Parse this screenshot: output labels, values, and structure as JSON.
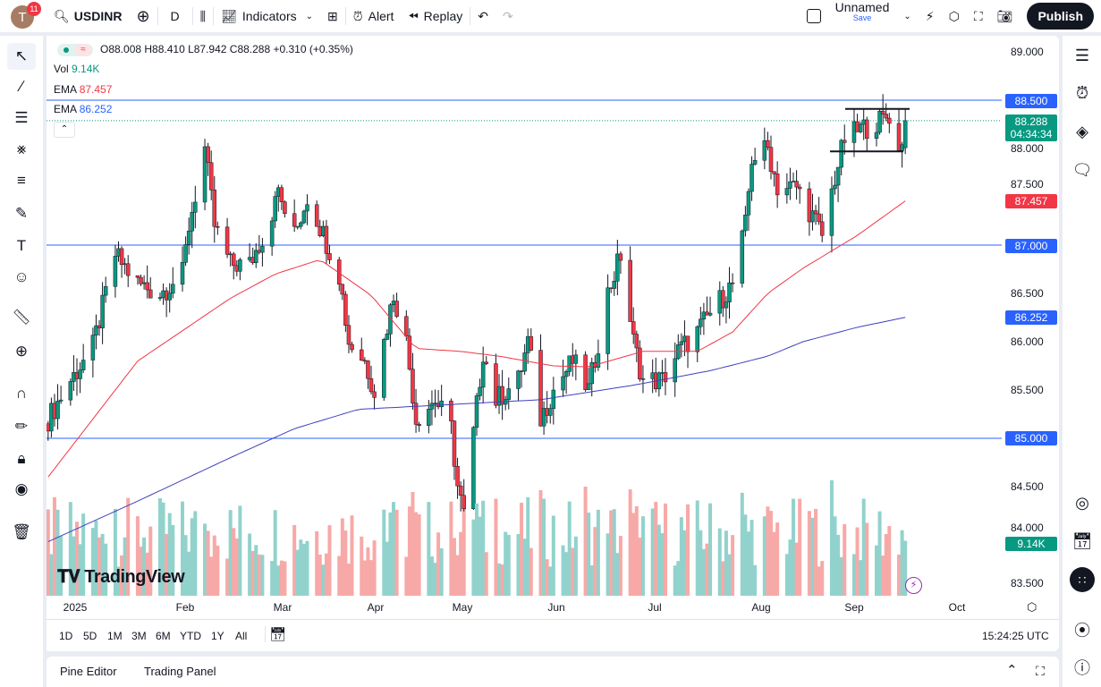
{
  "toolbar": {
    "avatar_letter": "T",
    "notifications": "11",
    "symbol": "USDINR",
    "interval": "D",
    "indicators": "Indicators",
    "alert": "Alert",
    "replay": "Replay",
    "layout_name": "Unnamed",
    "save": "Save",
    "publish": "Publish"
  },
  "legend": {
    "ohlc": "O88.008 H88.410 L87.942 C88.288 +0.310 (+0.35%)",
    "vol_label": "Vol",
    "vol_value": "9.14K",
    "ema1_label": "EMA",
    "ema1_value": "87.457",
    "ema2_label": "EMA",
    "ema2_value": "86.252"
  },
  "price_axis": {
    "ticks": [
      "89.000",
      "88.000",
      "87.500",
      "86.500",
      "86.000",
      "85.500",
      "84.500",
      "84.000",
      "83.500"
    ],
    "tags": {
      "level_885": "88.500",
      "last": "88.288",
      "countdown": "04:34:34",
      "ema1": "87.457",
      "level_87": "87.000",
      "ema2": "86.252",
      "level_85": "85.000",
      "volume": "9.14K"
    }
  },
  "time_axis": [
    "2025",
    "Feb",
    "Mar",
    "Apr",
    "May",
    "Jun",
    "Jul",
    "Aug",
    "Sep",
    "Oct"
  ],
  "ranges": [
    "1D",
    "5D",
    "1M",
    "3M",
    "6M",
    "YTD",
    "1Y",
    "All"
  ],
  "clock": "15:24:25 UTC",
  "bottom_tabs": [
    "Pine Editor",
    "Trading Panel"
  ],
  "watermark": "TradingView",
  "colors": {
    "up": "#089981",
    "down": "#f23645",
    "vol_up": "#92d2cc",
    "vol_down": "#f7a9a7",
    "ema_fast": "#f23645",
    "ema_slow": "#2962ff",
    "level": "#2962ff",
    "accent": "#2962ff"
  },
  "chart_data": {
    "type": "candlestick",
    "symbol": "USDINR",
    "interval": "D",
    "ylim": [
      83.5,
      89.0
    ],
    "grid": false,
    "horizontal_levels": [
      88.5,
      87.0,
      85.0
    ],
    "range_box": {
      "top": 88.41,
      "bottom": 87.97
    },
    "last": {
      "open": 88.008,
      "high": 88.41,
      "low": 87.942,
      "close": 88.288,
      "change": 0.31,
      "change_pct": 0.35,
      "volume": "9.14K"
    },
    "close_keypoints": [
      [
        "2024-12-23",
        85.2
      ],
      [
        "2024-12-30",
        85.6
      ],
      [
        "2025-01-06",
        85.95
      ],
      [
        "2025-01-13",
        86.9
      ],
      [
        "2025-01-20",
        86.6
      ],
      [
        "2025-01-27",
        86.5
      ],
      [
        "2025-02-03",
        86.7
      ],
      [
        "2025-02-05",
        87.2
      ],
      [
        "2025-02-10",
        88.0
      ],
      [
        "2025-02-13",
        87.2
      ],
      [
        "2025-02-18",
        86.8
      ],
      [
        "2025-02-24",
        86.8
      ],
      [
        "2025-03-03",
        87.3
      ],
      [
        "2025-03-04",
        87.6
      ],
      [
        "2025-03-10",
        87.1
      ],
      [
        "2025-03-14",
        87.5
      ],
      [
        "2025-03-18",
        87.2
      ],
      [
        "2025-03-24",
        86.7
      ],
      [
        "2025-03-27",
        86.0
      ],
      [
        "2025-04-01",
        85.8
      ],
      [
        "2025-04-04",
        85.5
      ],
      [
        "2025-04-10",
        86.5
      ],
      [
        "2025-04-14",
        86.0
      ],
      [
        "2025-04-17",
        85.2
      ],
      [
        "2025-04-23",
        85.4
      ],
      [
        "2025-04-28",
        85.1
      ],
      [
        "2025-04-30",
        84.5
      ],
      [
        "2025-05-02",
        84.2
      ],
      [
        "2025-05-08",
        85.9
      ],
      [
        "2025-05-12",
        85.4
      ],
      [
        "2025-05-19",
        85.6
      ],
      [
        "2025-05-22",
        86.0
      ],
      [
        "2025-05-26",
        85.2
      ],
      [
        "2025-05-30",
        85.5
      ],
      [
        "2025-06-05",
        85.8
      ],
      [
        "2025-06-10",
        85.5
      ],
      [
        "2025-06-16",
        86.5
      ],
      [
        "2025-06-20",
        86.9
      ],
      [
        "2025-06-24",
        86.0
      ],
      [
        "2025-06-27",
        85.6
      ],
      [
        "2025-07-03",
        85.6
      ],
      [
        "2025-07-08",
        85.9
      ],
      [
        "2025-07-14",
        86.1
      ],
      [
        "2025-07-18",
        86.3
      ],
      [
        "2025-07-25",
        86.6
      ],
      [
        "2025-07-29",
        87.2
      ],
      [
        "2025-07-31",
        87.9
      ],
      [
        "2025-08-05",
        88.0
      ],
      [
        "2025-08-08",
        87.6
      ],
      [
        "2025-08-14",
        87.6
      ],
      [
        "2025-08-19",
        87.3
      ],
      [
        "2025-08-22",
        87.1
      ],
      [
        "2025-08-26",
        87.7
      ],
      [
        "2025-08-29",
        88.1
      ],
      [
        "2025-09-03",
        88.2
      ],
      [
        "2025-09-10",
        88.3
      ],
      [
        "2025-09-12",
        88.35
      ],
      [
        "2025-09-15",
        87.95
      ],
      [
        "2025-09-17",
        88.288
      ]
    ],
    "ema_fast_keypoints": [
      [
        "2024-12-23",
        84.6
      ],
      [
        "2025-01-20",
        85.8
      ],
      [
        "2025-02-18",
        86.45
      ],
      [
        "2025-03-04",
        86.7
      ],
      [
        "2025-03-18",
        86.85
      ],
      [
        "2025-04-03",
        86.48
      ],
      [
        "2025-04-17",
        85.93
      ],
      [
        "2025-05-01",
        85.9
      ],
      [
        "2025-05-13",
        85.85
      ],
      [
        "2025-05-30",
        85.75
      ],
      [
        "2025-06-10",
        85.74
      ],
      [
        "2025-06-27",
        85.9
      ],
      [
        "2025-07-14",
        85.9
      ],
      [
        "2025-07-25",
        86.1
      ],
      [
        "2025-08-05",
        86.5
      ],
      [
        "2025-08-16",
        86.76
      ],
      [
        "2025-09-02",
        87.1
      ],
      [
        "2025-09-17",
        87.457
      ]
    ],
    "ema_slow_keypoints": [
      [
        "2024-12-23",
        83.93
      ],
      [
        "2025-01-20",
        84.35
      ],
      [
        "2025-02-18",
        84.8
      ],
      [
        "2025-03-10",
        85.1
      ],
      [
        "2025-03-30",
        85.3
      ],
      [
        "2025-04-28",
        85.35
      ],
      [
        "2025-05-26",
        85.4
      ],
      [
        "2025-06-24",
        85.55
      ],
      [
        "2025-07-18",
        85.7
      ],
      [
        "2025-08-05",
        85.85
      ],
      [
        "2025-08-16",
        86.0
      ],
      [
        "2025-09-02",
        86.15
      ],
      [
        "2025-09-17",
        86.252
      ]
    ]
  }
}
